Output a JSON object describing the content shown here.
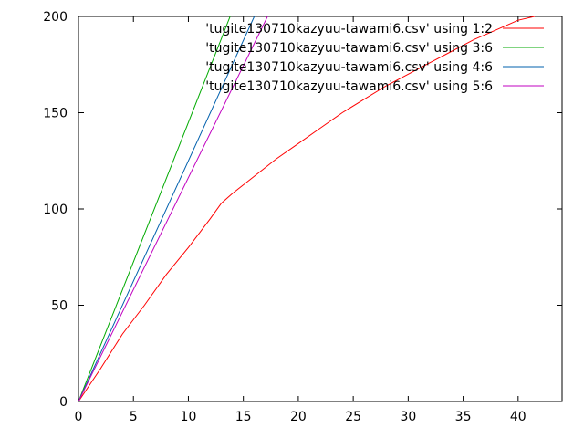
{
  "chart_data": {
    "type": "line",
    "title": "",
    "xlabel": "",
    "ylabel": "",
    "xlim": [
      0,
      44
    ],
    "ylim": [
      0,
      200
    ],
    "xticks": [
      0,
      5,
      10,
      15,
      20,
      25,
      30,
      35,
      40
    ],
    "yticks": [
      0,
      50,
      100,
      150,
      200
    ],
    "grid": false,
    "legend_position": "top-right",
    "series": [
      {
        "name": "'tugite130710kazyuu-tawami6.csv' using 1:2",
        "color": "#ff0000",
        "points": [
          [
            0,
            0
          ],
          [
            2,
            17
          ],
          [
            4,
            35
          ],
          [
            6,
            50
          ],
          [
            8,
            66
          ],
          [
            10,
            80
          ],
          [
            12,
            95
          ],
          [
            13,
            103
          ],
          [
            14,
            108
          ],
          [
            16,
            117
          ],
          [
            18,
            126
          ],
          [
            20,
            134
          ],
          [
            22,
            142
          ],
          [
            24,
            150
          ],
          [
            26,
            157
          ],
          [
            28,
            164
          ],
          [
            30,
            170
          ],
          [
            32,
            176
          ],
          [
            34,
            182
          ],
          [
            36,
            188
          ],
          [
            38,
            193
          ],
          [
            40,
            198
          ],
          [
            41.5,
            200
          ]
        ]
      },
      {
        "name": "'tugite130710kazyuu-tawami6.csv' using 3:6",
        "color": "#00aa00",
        "points": [
          [
            0,
            0
          ],
          [
            13.8,
            200
          ]
        ]
      },
      {
        "name": "'tugite130710kazyuu-tawami6.csv' using 4:6",
        "color": "#0060ad",
        "points": [
          [
            0,
            0
          ],
          [
            16,
            200
          ]
        ]
      },
      {
        "name": "'tugite130710kazyuu-tawami6.csv' using 5:6",
        "color": "#c000c0",
        "points": [
          [
            0,
            0
          ],
          [
            17.2,
            200
          ]
        ]
      }
    ]
  }
}
